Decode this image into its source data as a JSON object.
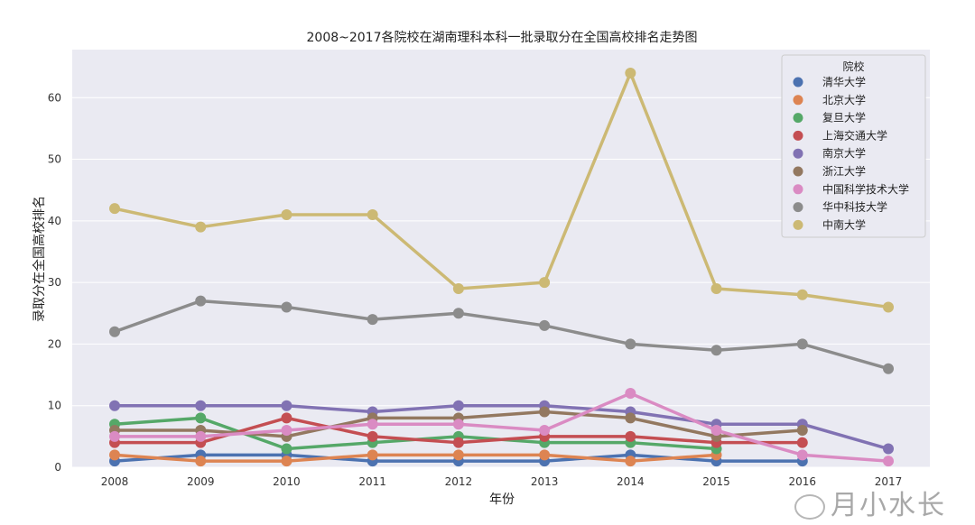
{
  "chart_data": {
    "type": "line",
    "title": "2008~2017各院校在湖南理科本科一批录取分在全国高校排名走势图",
    "xlabel": "年份",
    "ylabel": "录取分在全国高校排名",
    "categories": [
      "2008",
      "2009",
      "2010",
      "2011",
      "2012",
      "2013",
      "2014",
      "2015",
      "2016",
      "2017"
    ],
    "ylim": [
      0,
      67.8
    ],
    "yticks": [
      0,
      10,
      20,
      30,
      40,
      50,
      60
    ],
    "grid": true,
    "legend": {
      "title": "院校",
      "placement": "top-right"
    },
    "series": [
      {
        "name": "清华大学",
        "color": "#4C72B0",
        "values": [
          1,
          2,
          2,
          1,
          1,
          1,
          2,
          1,
          1,
          null
        ]
      },
      {
        "name": "北京大学",
        "color": "#DD8452",
        "values": [
          2,
          1,
          1,
          2,
          2,
          2,
          1,
          2,
          null,
          null
        ]
      },
      {
        "name": "复旦大学",
        "color": "#55A868",
        "values": [
          7,
          8,
          3,
          4,
          5,
          4,
          4,
          3,
          null,
          null
        ]
      },
      {
        "name": "上海交通大学",
        "color": "#C44E52",
        "values": [
          4,
          4,
          8,
          5,
          4,
          5,
          5,
          4,
          4,
          null
        ]
      },
      {
        "name": "南京大学",
        "color": "#8172B3",
        "values": [
          10,
          10,
          10,
          9,
          10,
          10,
          9,
          7,
          7,
          3
        ]
      },
      {
        "name": "浙江大学",
        "color": "#937860",
        "values": [
          6,
          6,
          5,
          8,
          8,
          9,
          8,
          5,
          6,
          null
        ]
      },
      {
        "name": "中国科学技术大学",
        "color": "#DA8BC3",
        "values": [
          5,
          5,
          6,
          7,
          7,
          6,
          12,
          6,
          2,
          1
        ]
      },
      {
        "name": "华中科技大学",
        "color": "#8C8C8C",
        "values": [
          22,
          27,
          26,
          24,
          25,
          23,
          20,
          19,
          20,
          16
        ]
      },
      {
        "name": "中南大学",
        "color": "#CCB974",
        "values": [
          42,
          39,
          41,
          41,
          29,
          30,
          64,
          29,
          28,
          26
        ]
      }
    ]
  },
  "watermark": "月小水长"
}
